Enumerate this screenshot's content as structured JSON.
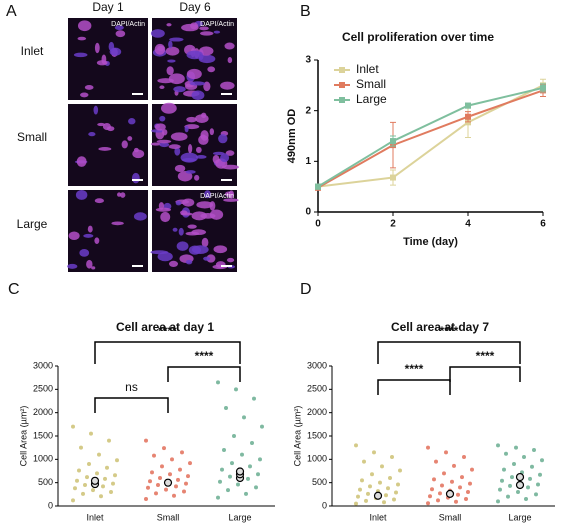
{
  "panel_a": {
    "panel": "A",
    "columns": [
      "Day 1",
      "Day 6"
    ],
    "rows": [
      "Inlet",
      "Small",
      "Large"
    ],
    "stain": "DAPI/Actin"
  },
  "chart_data": [
    {
      "type": "line",
      "panel": "B",
      "title": "Cell proliferation over time",
      "x_label": "Time (day)",
      "y_label": "490nm OD",
      "x": [
        0,
        2,
        4,
        6
      ],
      "xlim": [
        0,
        6
      ],
      "xticks": [
        0,
        2,
        4,
        6
      ],
      "ylim": [
        0,
        3
      ],
      "yticks": [
        0,
        1,
        2,
        3
      ],
      "legend": "upper left",
      "series": [
        {
          "name": "Inlet",
          "color": "#dcd39a",
          "values": [
            0.5,
            0.68,
            1.77,
            2.5
          ],
          "errors": [
            0.05,
            0.15,
            0.3,
            0.12
          ]
        },
        {
          "name": "Small",
          "color": "#e07b5f",
          "values": [
            0.48,
            1.32,
            1.88,
            2.4
          ],
          "errors": [
            0.05,
            0.45,
            0.1,
            0.12
          ]
        },
        {
          "name": "Large",
          "color": "#7fbf9e",
          "values": [
            0.5,
            1.4,
            2.1,
            2.45
          ],
          "errors": [
            0.05,
            0.1,
            0.05,
            0.08
          ]
        }
      ]
    },
    {
      "type": "strip",
      "panel": "C",
      "title": "Cell area at day 1",
      "y_label": "Cell Area (µm²)",
      "categories": [
        "Inlet",
        "Small",
        "Large"
      ],
      "colors": [
        "#c9bd6a",
        "#e0654f",
        "#5fa88a"
      ],
      "ylim": [
        0,
        3000
      ],
      "yticks": [
        0,
        500,
        1000,
        1500,
        2000,
        2500,
        3000
      ],
      "points": [
        [
          120,
          210,
          260,
          300,
          340,
          380,
          420,
          450,
          480,
          510,
          540,
          580,
          620,
          660,
          700,
          760,
          820,
          900,
          980,
          1100,
          1250,
          1400,
          1550,
          1700
        ],
        [
          150,
          220,
          270,
          310,
          350,
          390,
          420,
          450,
          480,
          500,
          530,
          560,
          600,
          640,
          680,
          720,
          780,
          850,
          920,
          1000,
          1080,
          1150,
          1240,
          1400
        ],
        [
          180,
          260,
          340,
          400,
          460,
          520,
          580,
          630,
          680,
          730,
          780,
          850,
          920,
          1000,
          1100,
          1200,
          1350,
          1500,
          1700,
          1900,
          2100,
          2300,
          2500,
          2650
        ]
      ],
      "means": [
        [
          470,
          540
        ],
        [
          500
        ],
        [
          600,
          680,
          740
        ]
      ],
      "comparisons": [
        {
          "between": [
            "Inlet",
            "Large"
          ],
          "label": "****"
        },
        {
          "between": [
            "Small",
            "Large"
          ],
          "label": "****"
        },
        {
          "between": [
            "Inlet",
            "Small"
          ],
          "label": "ns"
        }
      ]
    },
    {
      "type": "strip",
      "panel": "D",
      "title": "Cell area at day 7",
      "y_label": "Cell Area (µm²)",
      "categories": [
        "Inlet",
        "Small",
        "Large"
      ],
      "colors": [
        "#c9bd6a",
        "#e0654f",
        "#5fa88a"
      ],
      "ylim": [
        0,
        3000
      ],
      "yticks": [
        0,
        500,
        1000,
        1500,
        2000,
        2500,
        3000
      ],
      "points": [
        [
          50,
          80,
          110,
          140,
          170,
          200,
          230,
          260,
          290,
          320,
          350,
          380,
          420,
          460,
          500,
          550,
          600,
          680,
          760,
          850,
          950,
          1050,
          1150,
          1300
        ],
        [
          60,
          90,
          120,
          150,
          180,
          210,
          240,
          270,
          300,
          330,
          360,
          400,
          440,
          480,
          520,
          570,
          620,
          700,
          780,
          860,
          950,
          1050,
          1150,
          1250
        ],
        [
          100,
          150,
          200,
          250,
          300,
          350,
          400,
          430,
          460,
          500,
          540,
          580,
          620,
          670,
          720,
          780,
          840,
          900,
          980,
          1050,
          1120,
          1200,
          1250,
          1300
        ]
      ],
      "means": [
        [
          220
        ],
        [
          260
        ],
        [
          450,
          620
        ]
      ],
      "comparisons": [
        {
          "between": [
            "Inlet",
            "Large"
          ],
          "label": "****"
        },
        {
          "between": [
            "Small",
            "Large"
          ],
          "label": "****"
        },
        {
          "between": [
            "Inlet",
            "Small"
          ],
          "label": "****"
        }
      ]
    }
  ]
}
